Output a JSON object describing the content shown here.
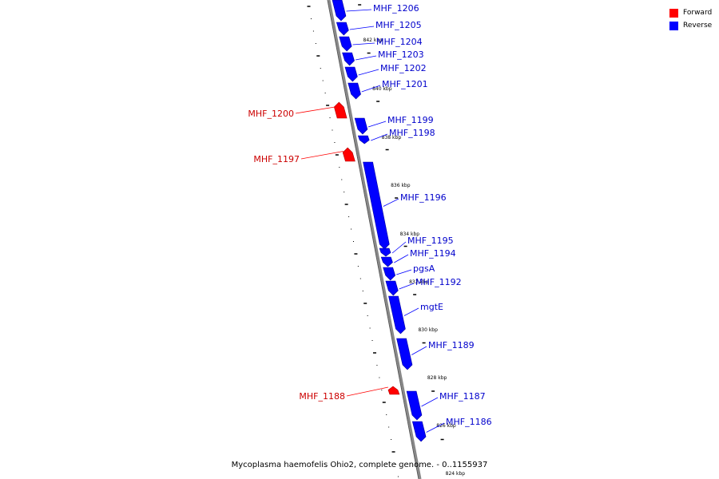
{
  "colors": {
    "forward": "#ff0000",
    "reverse": "#0000ff",
    "forward_label": "#cc0000",
    "reverse_label": "#0000cc",
    "backbone": "#888888",
    "tick": "#000000"
  },
  "legend": {
    "forward": "Forward",
    "reverse": "Reverse"
  },
  "footer": "Mycoplasma haemofelis Ohio2, complete genome. - 0..1155937",
  "scale_labels": [
    "842 kbp",
    "840 kbp",
    "838 kbp",
    "836 kbp",
    "834 kbp",
    "832 kbp",
    "830 kbp",
    "828 kbp",
    "826 kbp",
    "824 kbp"
  ],
  "features": [
    {
      "name": "MHF_1206",
      "strand": "reverse"
    },
    {
      "name": "MHF_1205",
      "strand": "reverse"
    },
    {
      "name": "MHF_1204",
      "strand": "reverse"
    },
    {
      "name": "MHF_1203",
      "strand": "reverse"
    },
    {
      "name": "MHF_1202",
      "strand": "reverse"
    },
    {
      "name": "MHF_1201",
      "strand": "reverse"
    },
    {
      "name": "MHF_1200",
      "strand": "forward"
    },
    {
      "name": "MHF_1199",
      "strand": "reverse"
    },
    {
      "name": "MHF_1198",
      "strand": "reverse"
    },
    {
      "name": "MHF_1197",
      "strand": "forward"
    },
    {
      "name": "MHF_1196",
      "strand": "reverse"
    },
    {
      "name": "MHF_1195",
      "strand": "reverse"
    },
    {
      "name": "MHF_1194",
      "strand": "reverse"
    },
    {
      "name": "pgsA",
      "strand": "reverse"
    },
    {
      "name": "MHF_1192",
      "strand": "reverse"
    },
    {
      "name": "mgtE",
      "strand": "reverse"
    },
    {
      "name": "MHF_1189",
      "strand": "reverse"
    },
    {
      "name": "MHF_1188",
      "strand": "forward"
    },
    {
      "name": "MHF_1187",
      "strand": "reverse"
    },
    {
      "name": "MHF_1186",
      "strand": "reverse"
    }
  ]
}
